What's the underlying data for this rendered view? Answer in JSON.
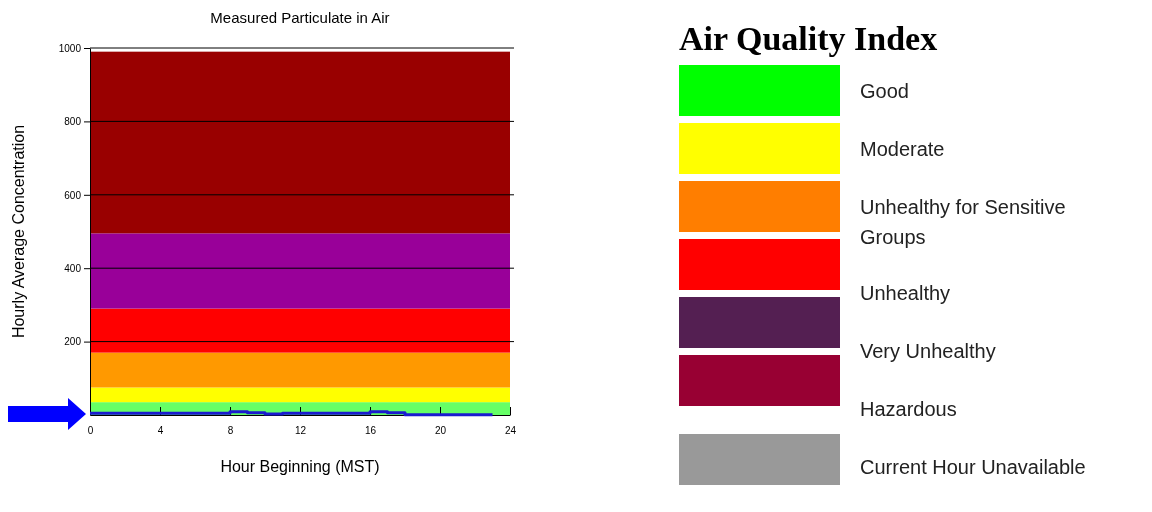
{
  "chart_data": [
    {
      "type": "step",
      "title": "Measured Particulate in Air",
      "xlabel": "Hour Beginning (MST)",
      "ylabel": "Hourly Average Concentration",
      "x": [
        0,
        1,
        2,
        3,
        4,
        5,
        6,
        7,
        8,
        9,
        10,
        11,
        12,
        13,
        14,
        15,
        16,
        17,
        18,
        19,
        20,
        21,
        22,
        23
      ],
      "series": [
        {
          "color": "#1a1ad0",
          "values": [
            5,
            5,
            5,
            5,
            5,
            5,
            5,
            5,
            9,
            6,
            3,
            5,
            5,
            5,
            5,
            5,
            9,
            6,
            1,
            1,
            1,
            1,
            1,
            1
          ]
        }
      ],
      "xlim": [
        0,
        24
      ],
      "xticks": [
        0,
        4,
        8,
        12,
        16,
        20,
        24
      ],
      "ylim": [
        0,
        1000
      ],
      "yticks": [
        200,
        400,
        600,
        800,
        1000
      ],
      "grid": "y",
      "marker": "none",
      "line_style": "solid",
      "bands": [
        {
          "axis": "y",
          "from": 0,
          "to": 35,
          "color": "#66ff66"
        },
        {
          "axis": "y",
          "from": 35,
          "to": 75,
          "color": "#ffff00"
        },
        {
          "axis": "y",
          "from": 75,
          "to": 170,
          "color": "#ff9900"
        },
        {
          "axis": "y",
          "from": 170,
          "to": 290,
          "color": "#ff0000"
        },
        {
          "axis": "y",
          "from": 290,
          "to": 495,
          "color": "#990099"
        },
        {
          "axis": "y",
          "from": 495,
          "to": 990,
          "color": "#990000"
        }
      ]
    },
    {
      "type": "other",
      "title": "Air Quality Index",
      "annotations": [
        "Good",
        "Moderate",
        "Unhealthy for Sensitive Groups",
        "Unhealthy",
        "Very Unhealthy",
        "Hazardous",
        "Current Hour Unavailable"
      ],
      "colors": [
        "#00ff00",
        "#ffff00",
        "#ff7e00",
        "#ff0000",
        "#541f52",
        "#980033",
        "#999999"
      ]
    }
  ]
}
